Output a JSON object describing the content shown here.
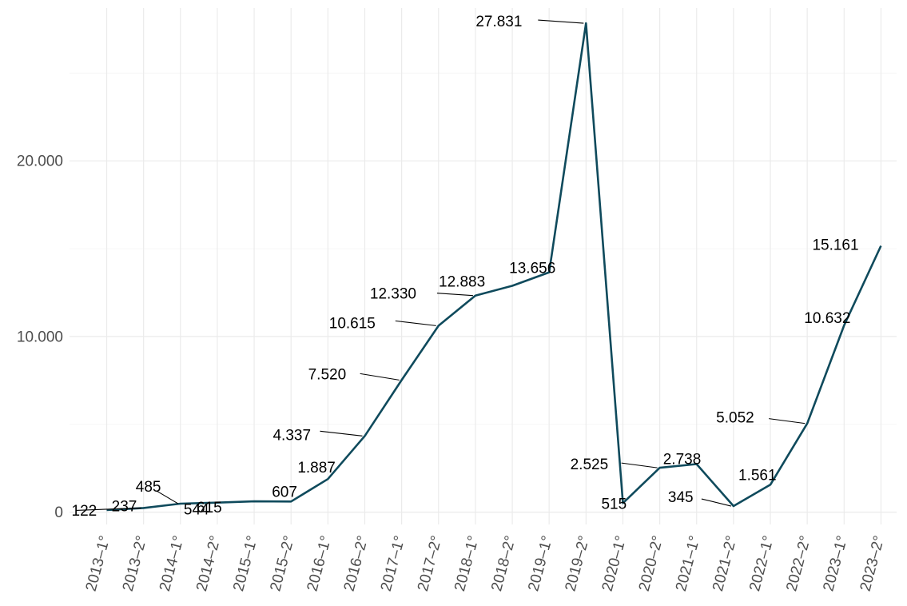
{
  "chart_data": {
    "type": "line",
    "categories": [
      "2013–1°",
      "2013–2°",
      "2014–1°",
      "2014–2°",
      "2015–1°",
      "2015–2°",
      "2016–1°",
      "2016–2°",
      "2017–1°",
      "2017–2°",
      "2018–1°",
      "2018–2°",
      "2019–1°",
      "2019–2°",
      "2020–1°",
      "2020–2°",
      "2021–1°",
      "2021–2°",
      "2022–1°",
      "2022–2°",
      "2023–1°",
      "2023–2°"
    ],
    "values": [
      122,
      237,
      485,
      544,
      615,
      607,
      1887,
      4337,
      7520,
      10615,
      12330,
      12883,
      13656,
      27831,
      515,
      2525,
      2738,
      345,
      1561,
      5052,
      10632,
      15161
    ],
    "labels": [
      "122",
      "237",
      "485",
      "544",
      "615",
      "607",
      "1.887",
      "4.337",
      "7.520",
      "10.615",
      "12.330",
      "12.883",
      "13.656",
      "27.831",
      "515",
      "2.525",
      "2.738",
      "345",
      "1.561",
      "5.052",
      "10.632",
      "15.161"
    ],
    "y_ticks": [
      0,
      10000,
      20000
    ],
    "y_tick_labels": [
      "0",
      "10.000",
      "20.000"
    ],
    "ylim": [
      -700,
      28700
    ],
    "grid": true,
    "line_color": "#0f4a5c",
    "title": "",
    "xlabel": "",
    "ylabel": ""
  }
}
